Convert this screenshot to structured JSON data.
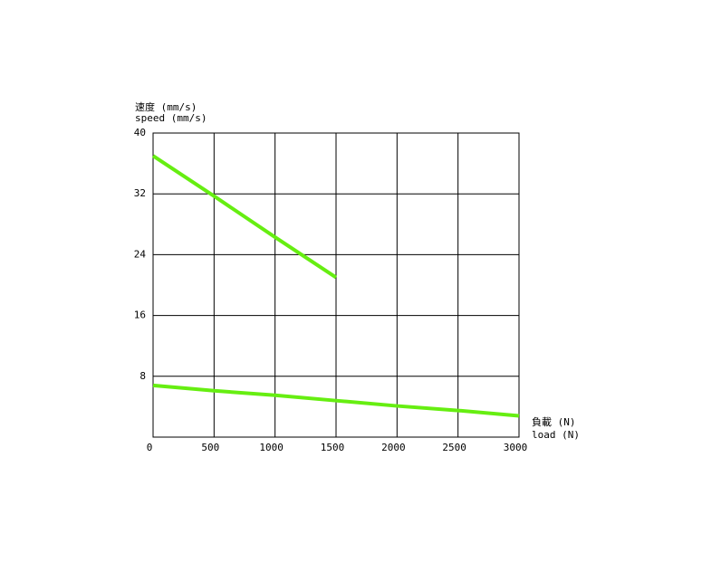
{
  "chart_data": {
    "type": "line",
    "ylabel": [
      "速度 (mm/s)",
      "speed (mm/s)"
    ],
    "xlabel": [
      "負載 (N)",
      "load (N)"
    ],
    "x": [
      0,
      500,
      1000,
      1500,
      2000,
      2500,
      3000
    ],
    "series": [
      {
        "color": "#66ee11",
        "values": [
          37,
          31.7,
          26.3,
          21,
          null,
          null,
          null
        ]
      },
      {
        "color": "#66ee11",
        "values": [
          6.8,
          6.1,
          5.5,
          4.8,
          4.1,
          3.5,
          2.8
        ]
      }
    ],
    "xlim": [
      0,
      3000
    ],
    "xticks": [
      0,
      500,
      1000,
      1500,
      2000,
      2500,
      3000
    ],
    "ylim": [
      0,
      40
    ],
    "yticks": [
      8,
      16,
      24,
      32,
      40
    ],
    "grid": true
  }
}
